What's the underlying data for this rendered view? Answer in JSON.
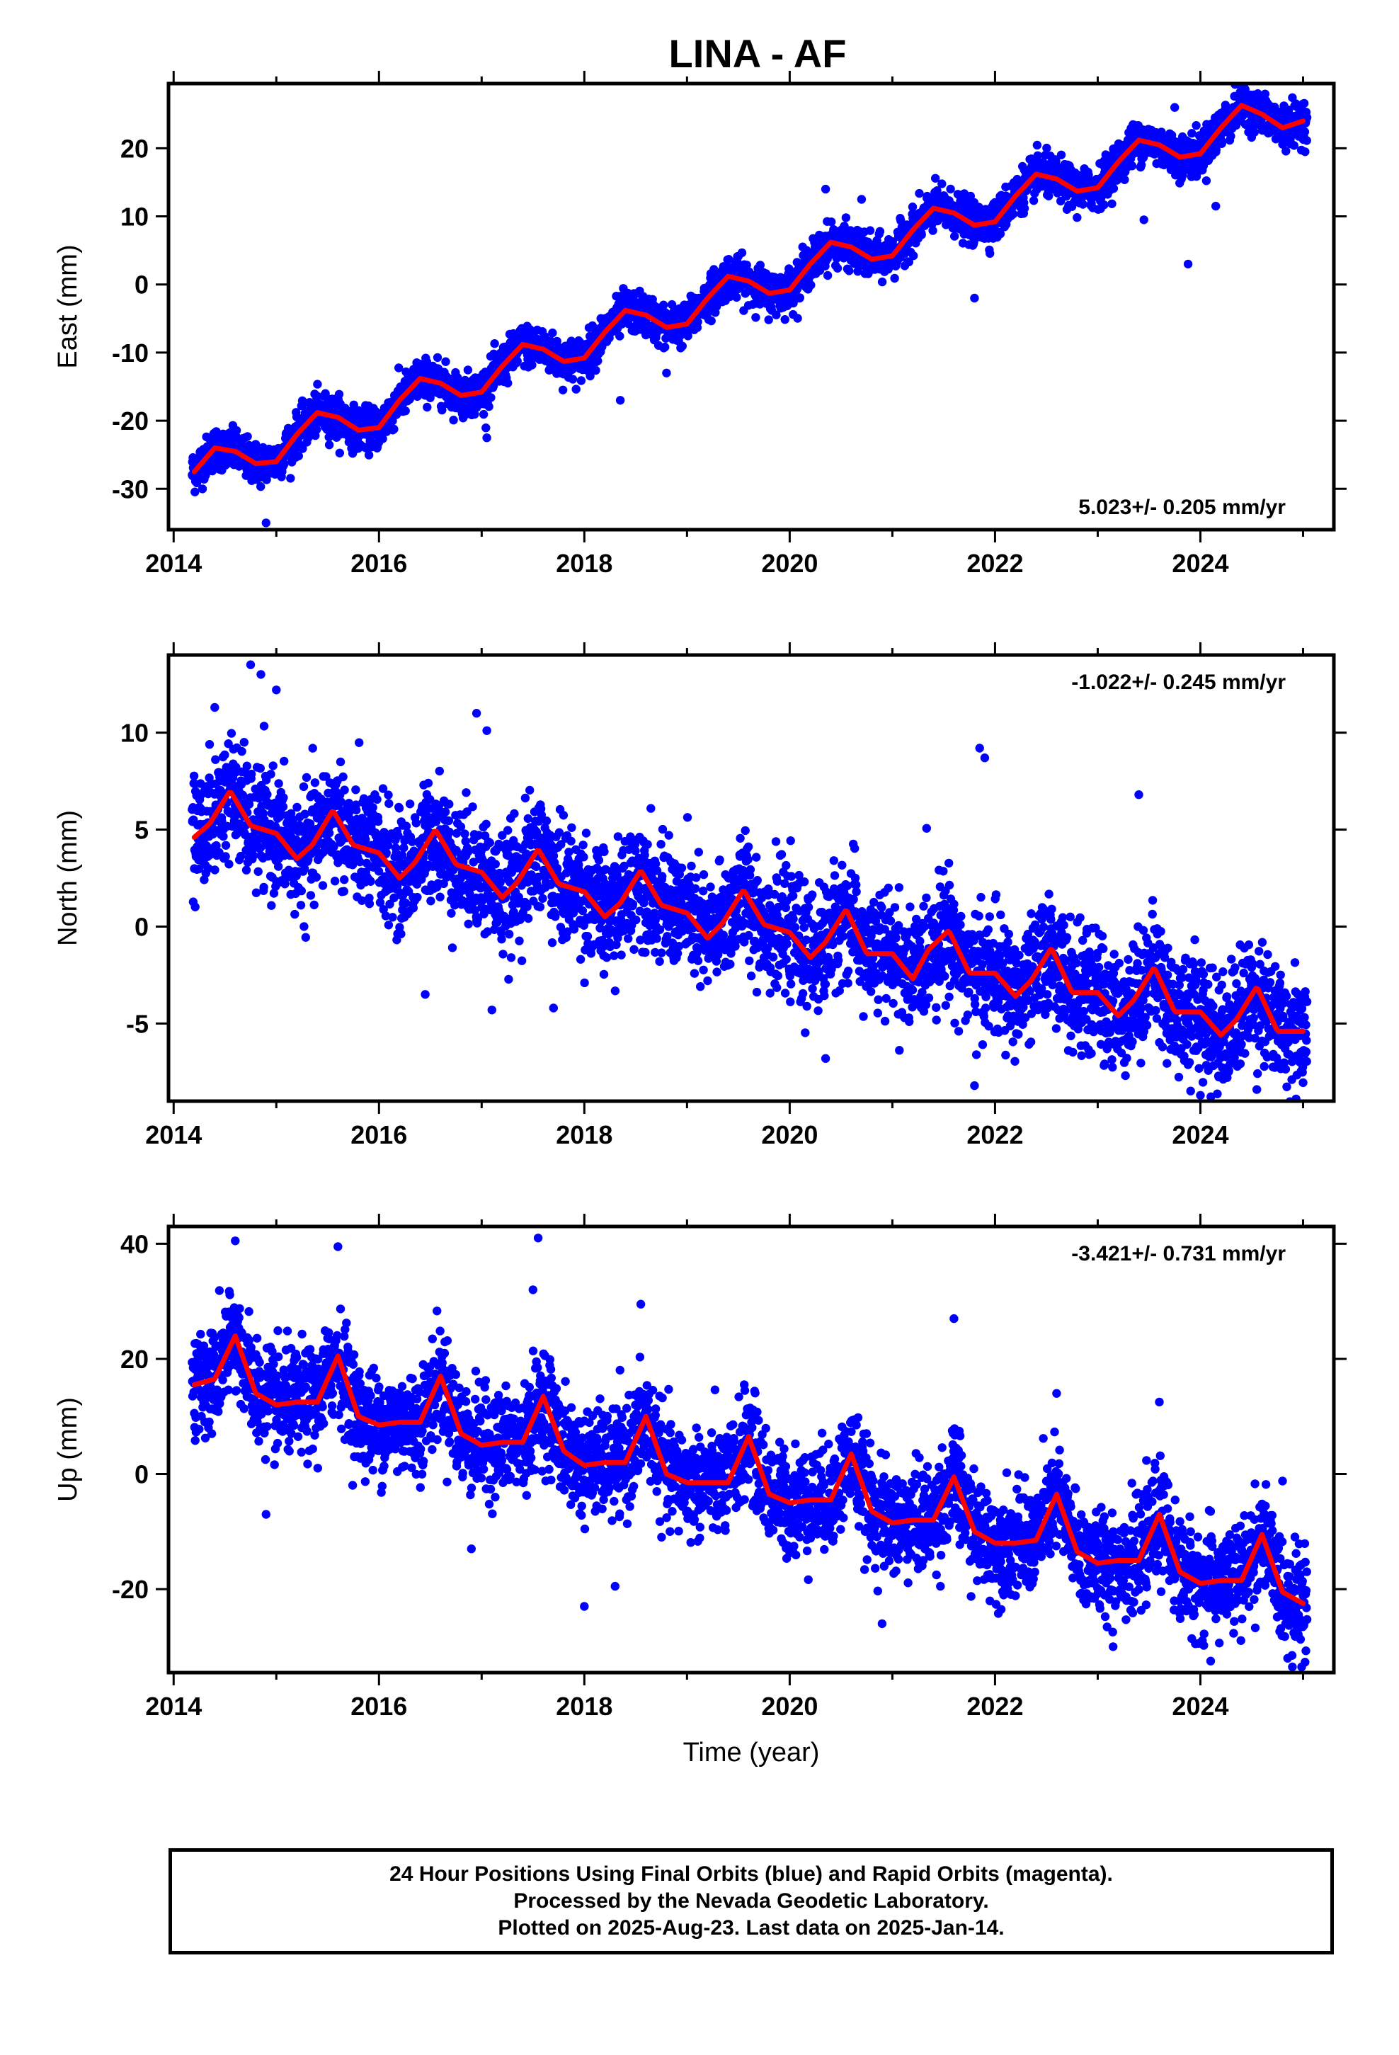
{
  "title": "LINA - AF",
  "footer": {
    "lines": [
      "24 Hour Positions Using Final Orbits (blue) and Rapid Orbits (magenta).",
      "Processed by the Nevada Geodetic Laboratory.",
      "Plotted on 2025-Aug-23. Last data on 2025-Jan-14."
    ]
  },
  "colors": {
    "final_orbits": "#0000ff",
    "model_fit": "#ff0000",
    "rapid_orbits": "#ff00ff"
  },
  "chart_data": [
    {
      "type": "scatter",
      "component": "east",
      "title": "LINA - AF",
      "ylabel": "East (mm)",
      "xlabel": "",
      "xlim": [
        2013.95,
        2025.3
      ],
      "ylim": [
        -36,
        29.5
      ],
      "xticks": [
        2014,
        2016,
        2018,
        2020,
        2022,
        2024
      ],
      "yticks": [
        -30,
        -20,
        -10,
        0,
        10,
        20
      ],
      "grid": false,
      "rate_label": "5.023+/- 0.205 mm/yr",
      "rate_position": "bottom-right",
      "trend": {
        "rate_mm_per_yr": 5.023,
        "value_at_2014_2": -27.5
      },
      "seasonal": {
        "annual_amplitude_mm": 2.6,
        "peak_phase_year_fraction": 0.4,
        "semiannual_amplitude_mm": 0.4
      },
      "scatter_sd_mm": 1.5,
      "outlier_points": [
        [
          2014.9,
          -35
        ],
        [
          2017.05,
          -22.5
        ],
        [
          2018.35,
          -17
        ],
        [
          2018.8,
          -13
        ],
        [
          2020.35,
          14
        ],
        [
          2020.7,
          12.5
        ],
        [
          2021.8,
          -2
        ],
        [
          2023.45,
          9.5
        ],
        [
          2023.75,
          26
        ],
        [
          2023.88,
          3
        ],
        [
          2024.15,
          11.5
        ]
      ],
      "fit_series": {
        "name": "",
        "x": [
          2014.2,
          2014.4,
          2014.6,
          2014.8,
          2015.0,
          2015.2,
          2015.4,
          2015.6,
          2015.8,
          2016.0,
          2016.2,
          2016.4,
          2016.6,
          2016.8,
          2017.0,
          2017.2,
          2017.4,
          2017.6,
          2017.8,
          2018.0,
          2018.2,
          2018.4,
          2018.6,
          2018.8,
          2019.0,
          2019.2,
          2019.4,
          2019.6,
          2019.8,
          2020.0,
          2020.2,
          2020.4,
          2020.6,
          2020.8,
          2021.0,
          2021.2,
          2021.4,
          2021.6,
          2021.8,
          2022.0,
          2022.2,
          2022.4,
          2022.6,
          2022.8,
          2023.0,
          2023.2,
          2023.4,
          2023.6,
          2023.8,
          2024.0,
          2024.2,
          2024.4,
          2024.6,
          2024.8,
          2025.0
        ],
        "y": [
          -27.5,
          -24.0,
          -24.5,
          -26.3,
          -26.0,
          -22.0,
          -18.8,
          -19.5,
          -21.4,
          -21.0,
          -17.0,
          -13.8,
          -14.5,
          -16.3,
          -15.8,
          -12.0,
          -8.8,
          -9.5,
          -11.3,
          -10.8,
          -7.0,
          -3.8,
          -4.5,
          -6.3,
          -5.8,
          -2.0,
          1.2,
          0.5,
          -1.3,
          -0.8,
          3.0,
          6.2,
          5.5,
          3.7,
          4.2,
          8.0,
          11.2,
          10.5,
          8.7,
          9.2,
          13.0,
          16.2,
          15.5,
          13.7,
          14.2,
          18.0,
          21.2,
          20.5,
          18.7,
          19.2,
          23.0,
          26.3,
          25.0,
          23.0,
          24.0
        ]
      }
    },
    {
      "type": "scatter",
      "component": "north",
      "ylabel": "North (mm)",
      "xlabel": "",
      "xlim": [
        2013.95,
        2025.3
      ],
      "ylim": [
        -9,
        14
      ],
      "xticks": [
        2014,
        2016,
        2018,
        2020,
        2022,
        2024
      ],
      "yticks": [
        -5,
        0,
        5,
        10
      ],
      "grid": false,
      "rate_label": "-1.022+/- 0.245 mm/yr",
      "rate_position": "top-right",
      "trend": {
        "rate_mm_per_yr": -1.022,
        "value_at_2014_2": 5.0
      },
      "seasonal": {
        "annual_amplitude_mm": 1.3,
        "peak_phase_year_fraction": 0.5,
        "semiannual_amplitude_mm": 0.3
      },
      "scatter_sd_mm": 1.5,
      "outlier_points": [
        [
          2014.75,
          13.5
        ],
        [
          2014.85,
          13
        ],
        [
          2015.0,
          12.2
        ],
        [
          2014.4,
          11.3
        ],
        [
          2016.95,
          11
        ],
        [
          2017.05,
          10.1
        ],
        [
          2021.85,
          9.2
        ],
        [
          2021.9,
          8.7
        ],
        [
          2023.4,
          6.8
        ],
        [
          2016.45,
          -3.5
        ],
        [
          2017.1,
          -4.3
        ],
        [
          2017.7,
          -4.2
        ],
        [
          2020.35,
          -6.8
        ],
        [
          2021.8,
          -8.2
        ],
        [
          2024.0,
          -8.7
        ],
        [
          2024.55,
          -8.4
        ]
      ],
      "fit_series": {
        "name": "",
        "x": [
          2014.2,
          2014.35,
          2014.55,
          2014.75,
          2015.0,
          2015.2,
          2015.35,
          2015.55,
          2015.75,
          2016.0,
          2016.2,
          2016.35,
          2016.55,
          2016.75,
          2017.0,
          2017.2,
          2017.35,
          2017.55,
          2017.75,
          2018.0,
          2018.2,
          2018.35,
          2018.55,
          2018.75,
          2019.0,
          2019.2,
          2019.35,
          2019.55,
          2019.75,
          2020.0,
          2020.2,
          2020.35,
          2020.55,
          2020.75,
          2021.0,
          2021.2,
          2021.35,
          2021.55,
          2021.75,
          2022.0,
          2022.2,
          2022.35,
          2022.55,
          2022.75,
          2023.0,
          2023.2,
          2023.35,
          2023.55,
          2023.75,
          2024.0,
          2024.2,
          2024.35,
          2024.55,
          2024.75,
          2025.0
        ],
        "y": [
          4.6,
          5.3,
          7.0,
          5.2,
          4.8,
          3.5,
          4.2,
          6.0,
          4.2,
          3.8,
          2.5,
          3.3,
          5.0,
          3.2,
          2.8,
          1.5,
          2.3,
          4.0,
          2.2,
          1.8,
          0.5,
          1.2,
          2.9,
          1.1,
          0.7,
          -0.6,
          0.2,
          1.9,
          0.1,
          -0.3,
          -1.6,
          -0.8,
          0.9,
          -1.4,
          -1.4,
          -2.7,
          -1.2,
          -0.2,
          -2.4,
          -2.4,
          -3.6,
          -2.8,
          -1.1,
          -3.4,
          -3.4,
          -4.6,
          -3.8,
          -2.1,
          -4.4,
          -4.4,
          -5.6,
          -4.8,
          -3.1,
          -5.4,
          -5.4
        ]
      }
    },
    {
      "type": "scatter",
      "component": "up",
      "ylabel": "Up (mm)",
      "xlabel": "Time (year)",
      "xlim": [
        2013.95,
        2025.3
      ],
      "ylim": [
        -34.5,
        43
      ],
      "xticks": [
        2014,
        2016,
        2018,
        2020,
        2022,
        2024
      ],
      "yticks": [
        -20,
        0,
        20,
        40
      ],
      "grid": false,
      "rate_label": "-3.421+/- 0.731 mm/yr",
      "rate_position": "top-right",
      "trend": {
        "rate_mm_per_yr": -3.421,
        "value_at_2014_2": 16.0
      },
      "seasonal": {
        "annual_amplitude_mm": 5.0,
        "peak_phase_year_fraction": 0.6,
        "semiannual_amplitude_mm": 1.5
      },
      "scatter_sd_mm": 4.5,
      "outlier_points": [
        [
          2014.6,
          40.5
        ],
        [
          2015.6,
          39.5
        ],
        [
          2017.55,
          41
        ],
        [
          2017.5,
          32
        ],
        [
          2018.55,
          29.5
        ],
        [
          2021.6,
          27
        ],
        [
          2022.6,
          14
        ],
        [
          2023.6,
          12.5
        ],
        [
          2018.0,
          -23
        ],
        [
          2018.3,
          -19.5
        ],
        [
          2014.9,
          -7
        ],
        [
          2016.9,
          -13
        ],
        [
          2020.9,
          -26
        ],
        [
          2023.15,
          -30
        ],
        [
          2024.1,
          -32.5
        ],
        [
          2024.85,
          -32
        ]
      ],
      "fit_series": {
        "name": "",
        "x": [
          2014.2,
          2014.4,
          2014.6,
          2014.8,
          2015.0,
          2015.2,
          2015.4,
          2015.6,
          2015.8,
          2016.0,
          2016.2,
          2016.4,
          2016.6,
          2016.8,
          2017.0,
          2017.2,
          2017.4,
          2017.6,
          2017.8,
          2018.0,
          2018.2,
          2018.4,
          2018.6,
          2018.8,
          2019.0,
          2019.2,
          2019.4,
          2019.6,
          2019.8,
          2020.0,
          2020.2,
          2020.4,
          2020.6,
          2020.8,
          2021.0,
          2021.2,
          2021.4,
          2021.6,
          2021.8,
          2022.0,
          2022.2,
          2022.4,
          2022.6,
          2022.8,
          2023.0,
          2023.2,
          2023.4,
          2023.6,
          2023.8,
          2024.0,
          2024.2,
          2024.4,
          2024.6,
          2024.8,
          2025.0
        ],
        "y": [
          15.5,
          16.5,
          24.0,
          14.0,
          12.0,
          12.5,
          12.5,
          20.5,
          10.0,
          8.5,
          9.0,
          9.0,
          17.0,
          7.0,
          5.0,
          5.5,
          5.5,
          13.5,
          4.0,
          1.5,
          2.0,
          2.0,
          10.0,
          0.0,
          -1.5,
          -1.5,
          -1.5,
          6.5,
          -3.5,
          -5.0,
          -4.5,
          -4.5,
          3.5,
          -6.5,
          -8.5,
          -8.0,
          -8.0,
          -0.5,
          -10.0,
          -12.0,
          -12.0,
          -11.5,
          -3.5,
          -13.5,
          -15.5,
          -15.0,
          -15.0,
          -7.0,
          -17.0,
          -19.0,
          -18.5,
          -18.5,
          -10.5,
          -20.5,
          -22.5
        ]
      }
    }
  ]
}
